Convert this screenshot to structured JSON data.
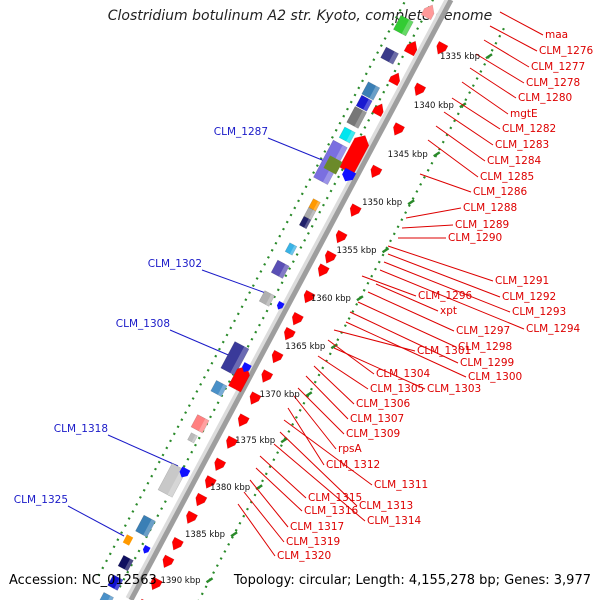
{
  "title": "Clostridium botulinum A2 str. Kyoto, complete genome",
  "footer": {
    "accession": "Accession: NC_012563",
    "topology": "Topology: circular; Length: 4,155,278 bp; Genes: 3,977"
  },
  "colors": {
    "cds_red": "#ff0000",
    "backbone": "#9e9e9e",
    "tick_green": "#2a8a2a",
    "label_red": "#dd0000",
    "label_blue": "#1a1ac8"
  },
  "kbp_ticks": [
    "1335 kbp",
    "1340 kbp",
    "1345 kbp",
    "1350 kbp",
    "1355 kbp",
    "1360 kbp",
    "1365 kbp",
    "1370 kbp",
    "1375 kbp",
    "1380 kbp",
    "1385 kbp",
    "1390 kbp"
  ],
  "left_labels": [
    "CLM_1287",
    "CLM_1302",
    "CLM_1308",
    "CLM_1318",
    "CLM_1325"
  ],
  "right_labels": [
    "maa",
    "CLM_1276",
    "CLM_1277",
    "CLM_1278",
    "CLM_1280",
    "mgtE",
    "CLM_1282",
    "CLM_1283",
    "CLM_1284",
    "CLM_1285",
    "CLM_1286",
    "CLM_1288",
    "CLM_1289",
    "CLM_1290",
    "CLM_1291",
    "CLM_1292",
    "CLM_1293",
    "CLM_1294",
    "CLM_1296",
    "xpt",
    "CLM_1297",
    "CLM_1298",
    "CLM_1299",
    "CLM_1300",
    "CLM_1301",
    "CLM_1304",
    "CLM_1303",
    "CLM_1305",
    "CLM_1306",
    "CLM_1307",
    "CLM_1309",
    "rpsA",
    "CLM_1312",
    "CLM_1311",
    "CLM_1313",
    "CLM_1314",
    "CLM_1315",
    "CLM_1316",
    "CLM_1317",
    "CLM_1319",
    "CLM_1320"
  ]
}
